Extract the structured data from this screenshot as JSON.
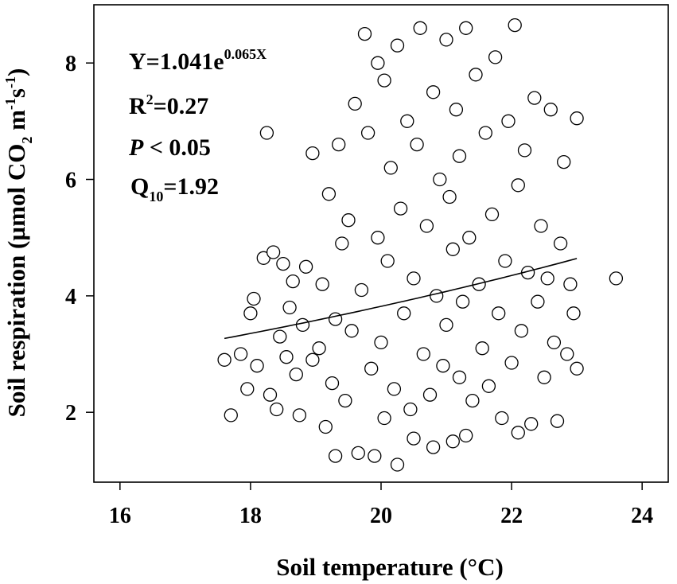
{
  "chart_data": {
    "type": "scatter",
    "xlabel": "Soil temperature (°C)",
    "ylabel": {
      "prefix": "Soil respiration (µmol CO",
      "sub": "2",
      "middle": " m",
      "sup1": "-1",
      "s": "s",
      "sup2": "-1",
      "suffix": ")"
    },
    "xlim": [
      15.6,
      24.4
    ],
    "ylim": [
      0.8,
      9.0
    ],
    "xticks": [
      16,
      18,
      20,
      22,
      24
    ],
    "yticks": [
      2,
      4,
      6,
      8
    ],
    "xtick_labels": [
      "16",
      "18",
      "20",
      "22",
      "24"
    ],
    "ytick_labels": [
      "2",
      "4",
      "6",
      "8"
    ],
    "grid": false,
    "annotations": {
      "equation": {
        "base": "Y=1.041e",
        "exponent": "0.065X"
      },
      "r2": {
        "r": "R",
        "sup": "2",
        "rest": "=0.27"
      },
      "p": {
        "italic": "P",
        "rest": " < 0.05"
      },
      "q10": {
        "q": "Q",
        "sub": "10",
        "rest": "=1.92"
      }
    },
    "fit": {
      "type": "exponential",
      "a": 1.041,
      "b": 0.065,
      "x_range": [
        17.6,
        23.0
      ]
    },
    "series": [
      {
        "points": [
          [
            17.6,
            2.9
          ],
          [
            17.7,
            1.95
          ],
          [
            17.85,
            3.0
          ],
          [
            17.95,
            2.4
          ],
          [
            18.0,
            3.7
          ],
          [
            18.05,
            3.95
          ],
          [
            18.1,
            2.8
          ],
          [
            18.2,
            4.65
          ],
          [
            18.25,
            6.8
          ],
          [
            18.3,
            2.3
          ],
          [
            18.35,
            4.75
          ],
          [
            18.4,
            2.05
          ],
          [
            18.45,
            3.3
          ],
          [
            18.5,
            4.55
          ],
          [
            18.55,
            2.95
          ],
          [
            18.6,
            3.8
          ],
          [
            18.65,
            4.25
          ],
          [
            18.7,
            2.65
          ],
          [
            18.75,
            1.95
          ],
          [
            18.8,
            3.5
          ],
          [
            18.85,
            4.5
          ],
          [
            18.95,
            2.9
          ],
          [
            18.95,
            6.45
          ],
          [
            19.05,
            3.1
          ],
          [
            19.1,
            4.2
          ],
          [
            19.15,
            1.75
          ],
          [
            19.2,
            5.75
          ],
          [
            19.25,
            2.5
          ],
          [
            19.3,
            3.6
          ],
          [
            19.3,
            1.25
          ],
          [
            19.35,
            6.6
          ],
          [
            19.4,
            4.9
          ],
          [
            19.45,
            2.2
          ],
          [
            19.5,
            5.3
          ],
          [
            19.55,
            3.4
          ],
          [
            19.6,
            7.3
          ],
          [
            19.65,
            1.3
          ],
          [
            19.7,
            4.1
          ],
          [
            19.75,
            8.5
          ],
          [
            19.8,
            6.8
          ],
          [
            19.85,
            2.75
          ],
          [
            19.9,
            1.25
          ],
          [
            19.95,
            5.0
          ],
          [
            19.95,
            8.0
          ],
          [
            20.0,
            3.2
          ],
          [
            20.05,
            7.7
          ],
          [
            20.05,
            1.9
          ],
          [
            20.1,
            4.6
          ],
          [
            20.15,
            6.2
          ],
          [
            20.2,
            2.4
          ],
          [
            20.25,
            8.3
          ],
          [
            20.25,
            1.1
          ],
          [
            20.3,
            5.5
          ],
          [
            20.35,
            3.7
          ],
          [
            20.4,
            7.0
          ],
          [
            20.45,
            2.05
          ],
          [
            20.5,
            4.3
          ],
          [
            20.5,
            1.55
          ],
          [
            20.55,
            6.6
          ],
          [
            20.6,
            8.6
          ],
          [
            20.65,
            3.0
          ],
          [
            20.7,
            5.2
          ],
          [
            20.75,
            2.3
          ],
          [
            20.8,
            7.5
          ],
          [
            20.8,
            1.4
          ],
          [
            20.85,
            4.0
          ],
          [
            20.9,
            6.0
          ],
          [
            20.95,
            2.8
          ],
          [
            21.0,
            8.4
          ],
          [
            21.0,
            3.5
          ],
          [
            21.05,
            5.7
          ],
          [
            21.1,
            1.5
          ],
          [
            21.1,
            4.8
          ],
          [
            21.15,
            7.2
          ],
          [
            21.2,
            2.6
          ],
          [
            21.2,
            6.4
          ],
          [
            21.25,
            3.9
          ],
          [
            21.3,
            8.6
          ],
          [
            21.3,
            1.6
          ],
          [
            21.35,
            5.0
          ],
          [
            21.4,
            2.2
          ],
          [
            21.45,
            7.8
          ],
          [
            21.5,
            4.2
          ],
          [
            21.55,
            3.1
          ],
          [
            21.6,
            6.8
          ],
          [
            21.65,
            2.45
          ],
          [
            21.7,
            5.4
          ],
          [
            21.75,
            8.1
          ],
          [
            21.8,
            3.7
          ],
          [
            21.85,
            1.9
          ],
          [
            21.9,
            4.6
          ],
          [
            21.95,
            7.0
          ],
          [
            22.0,
            2.85
          ],
          [
            22.05,
            8.65
          ],
          [
            22.1,
            5.9
          ],
          [
            22.1,
            1.65
          ],
          [
            22.15,
            3.4
          ],
          [
            22.2,
            6.5
          ],
          [
            22.25,
            4.4
          ],
          [
            22.3,
            1.8
          ],
          [
            22.35,
            7.4
          ],
          [
            22.4,
            3.9
          ],
          [
            22.45,
            5.2
          ],
          [
            22.5,
            2.6
          ],
          [
            22.55,
            4.3
          ],
          [
            22.6,
            7.2
          ],
          [
            22.65,
            3.2
          ],
          [
            22.7,
            1.85
          ],
          [
            22.75,
            4.9
          ],
          [
            22.8,
            6.3
          ],
          [
            22.85,
            3.0
          ],
          [
            22.9,
            4.2
          ],
          [
            22.95,
            3.7
          ],
          [
            23.0,
            2.75
          ],
          [
            23.0,
            7.05
          ],
          [
            23.6,
            4.3
          ]
        ]
      }
    ]
  }
}
